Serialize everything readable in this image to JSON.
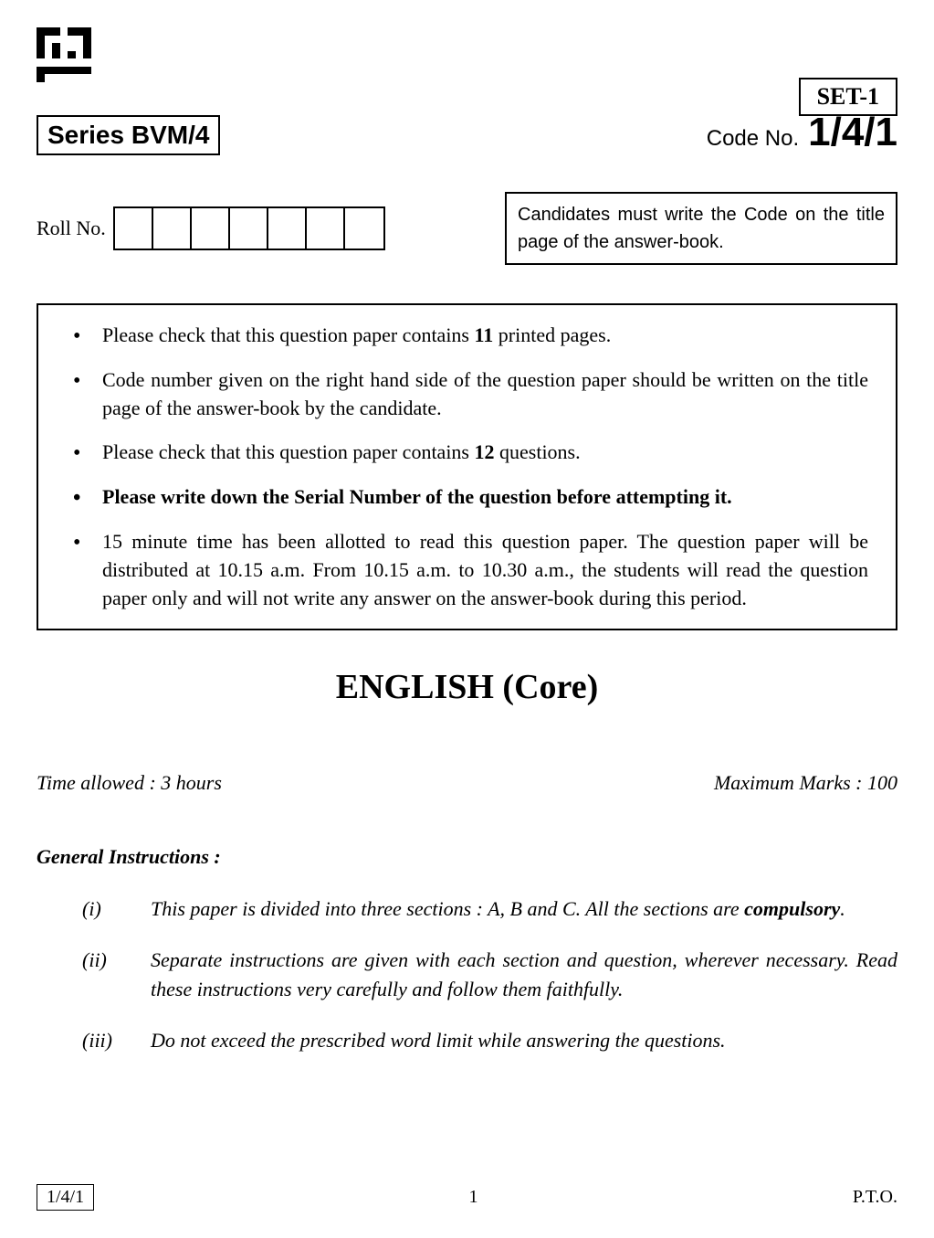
{
  "set_label": "SET-1",
  "series_label": "Series BVM/4",
  "code_label": "Code No.",
  "code_value": "1/4/1",
  "roll_label": "Roll No.",
  "roll_box_count": 7,
  "candidate_note": "Candidates must write the Code on the title page of the answer-book.",
  "instructions": [
    {
      "text": "Please check that this question paper contains <b>11</b> printed pages.",
      "bold": false
    },
    {
      "text": "Code number given on the right hand side of the question paper should be written on the title page of the answer-book by the candidate.",
      "bold": false
    },
    {
      "text": "Please check that this question paper contains <b>12</b> questions.",
      "bold": false
    },
    {
      "text": "Please write down the Serial Number of the question before attempting it.",
      "bold": true
    },
    {
      "text": "15 minute time has been allotted to read this question paper. The question paper will be distributed at 10.15 a.m. From 10.15 a.m. to 10.30 a.m., the students will read the question paper only and will not write any answer on the answer-book during this period.",
      "bold": false
    }
  ],
  "subject_title": "ENGLISH (Core)",
  "time_allowed": "Time allowed : 3 hours",
  "max_marks": "Maximum Marks : 100",
  "general_heading": "General Instructions :",
  "general_instructions": [
    {
      "num": "(i)",
      "text": "This paper is divided into three sections : A, B and C. All the sections are <b class='bold-word'>compulsory</b>."
    },
    {
      "num": "(ii)",
      "text": "Separate instructions are given with each section and question, wherever necessary. Read these instructions very carefully and follow them faithfully."
    },
    {
      "num": "(iii)",
      "text": "Do not exceed the prescribed word limit while answering the questions."
    }
  ],
  "footer_code": "1/4/1",
  "page_number": "1",
  "pto": "P.T.O.",
  "qr_pattern": "bbbwbbbbwwwwwbbwbwwwbbwbwbwbwwwwwwwbbbbbbbbwwwwwww"
}
